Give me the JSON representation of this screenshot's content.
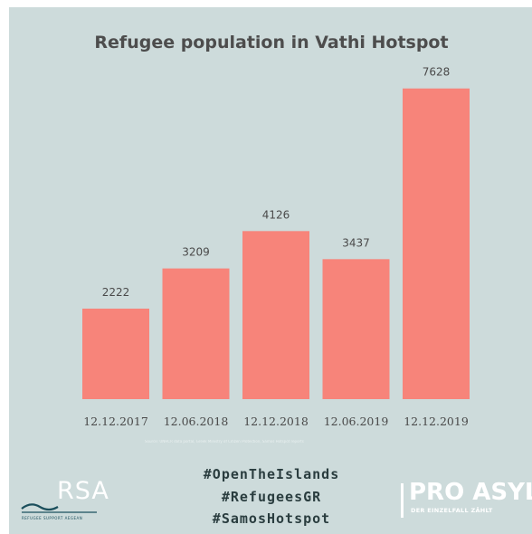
{
  "chart_data": {
    "type": "bar",
    "title": "Refugee population in Vathi Hotspot",
    "categories": [
      "12.12.2017",
      "12.06.2018",
      "12.12.2018",
      "12.06.2019",
      "12.12.2019"
    ],
    "values": [
      2222,
      3209,
      4126,
      3437,
      7628
    ],
    "ylim": [
      0,
      8000
    ],
    "grid": false,
    "bar_color": "#f7847a"
  },
  "footer": {
    "source_text": "Source: UNHCR data portal, Greek Ministry of Citizen Protection, Samos Hotspot reports",
    "hashtags": [
      "#OpenTheIslands",
      "#RefugeesGR",
      "#SamosHotspot"
    ],
    "rsa_logo_text": "RSA",
    "rsa_subtitle": "REFUGEE SUPPORT AEGEAN",
    "proasyl_logo_text": "PRO ASYL",
    "proasyl_subtitle": "DER EINZELFALL ZÄHLT"
  },
  "colors": {
    "background": "#cddbdb",
    "title": "#4d4d4d",
    "bar": "#f7847a",
    "text": "#4a4a4a",
    "hashtag": "#2a3d3f",
    "logo_accent": "#1b4f5c"
  }
}
